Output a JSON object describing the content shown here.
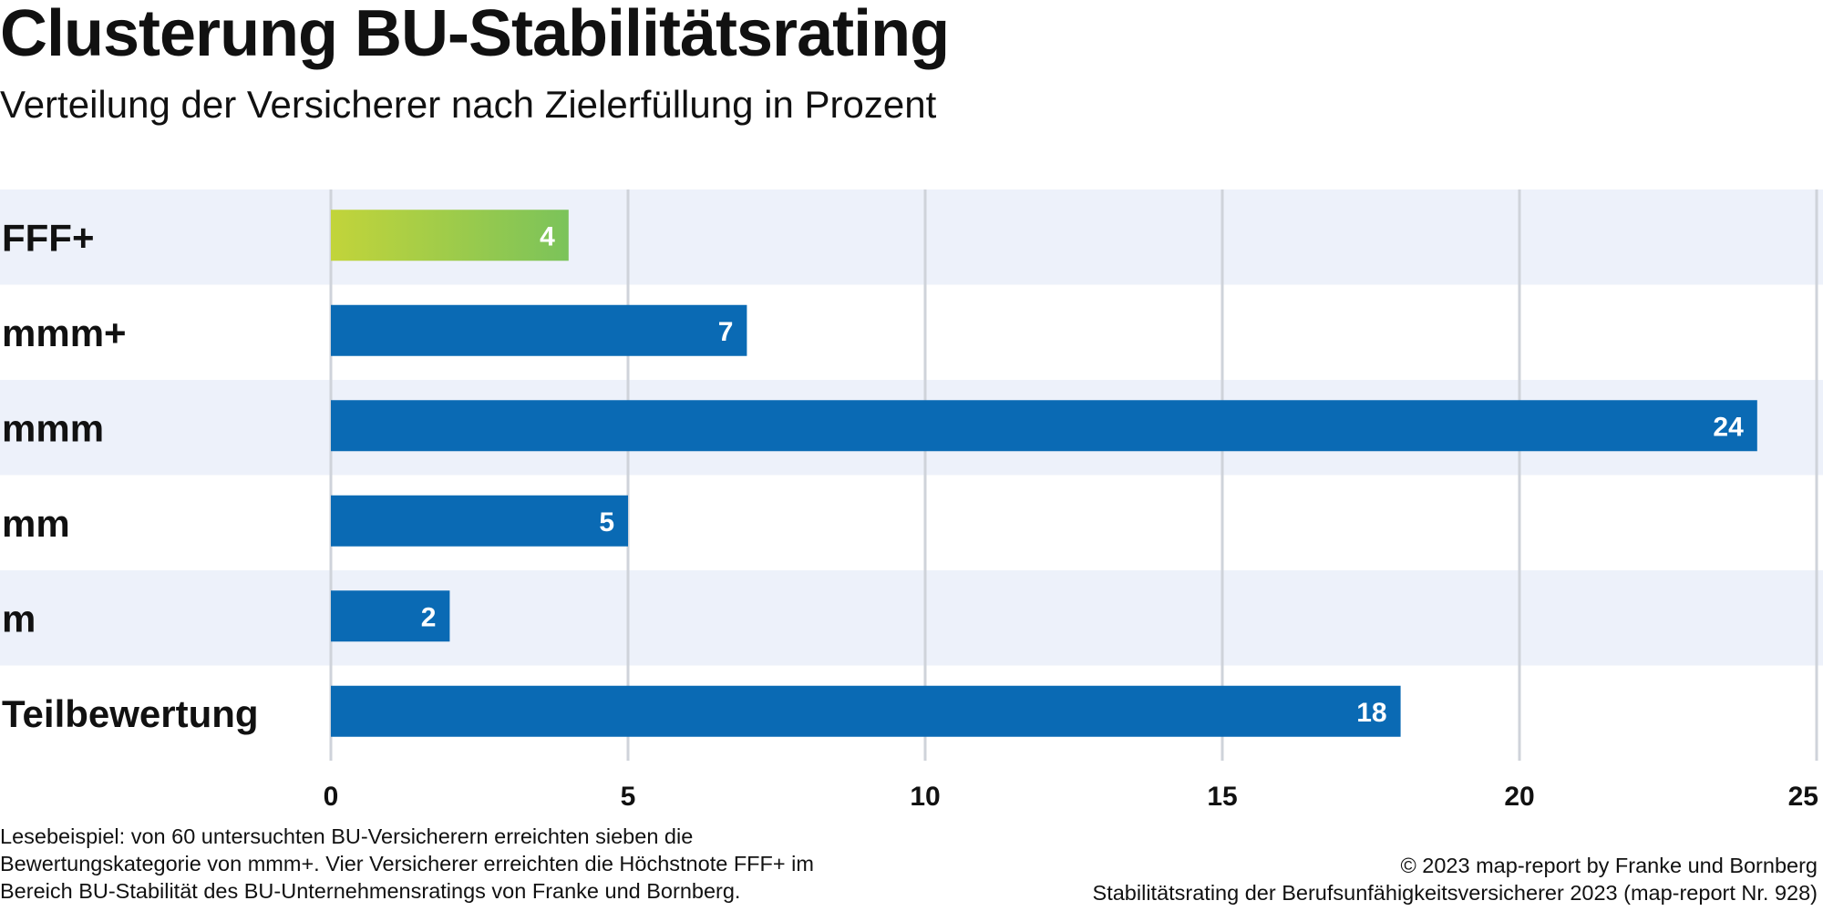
{
  "header": {
    "title": "Clusterung BU-Stabilitätsrating",
    "subtitle": "Verteilung der Versicherer nach Zielerfüllung in Prozent"
  },
  "chart_data": {
    "type": "bar",
    "orientation": "horizontal",
    "title": "Clusterung BU-Stabilitätsrating",
    "subtitle": "Verteilung der Versicherer nach Zielerfüllung in Prozent",
    "categories": [
      "FFF+",
      "mmm+",
      "mmm",
      "mm",
      "m",
      "Teilbewertung"
    ],
    "values": [
      4,
      7,
      24,
      5,
      2,
      18
    ],
    "xlim": [
      0,
      25
    ],
    "xticks": [
      0,
      5,
      10,
      15,
      20,
      25
    ],
    "xlabel": "",
    "ylabel": "",
    "grid": true,
    "colors": {
      "primary_bar": "#0a6ab4",
      "highlight_gradient_start": "#c2d43a",
      "highlight_gradient_end": "#7bc35a",
      "row_band": "#edf1fa",
      "gridline": "#cfd3da"
    },
    "highlight_category": "FFF+"
  },
  "footer": {
    "note": "Lesebeispiel: von 60 untersuchten BU-Versicherern erreichten sieben die Bewertungskategorie von mmm+. Vier Versicherer erreichten die Höchstnote FFF+ im Bereich BU-Stabilität des BU-Unternehmensratings von Franke und Bornberg.",
    "copyright": "© 2023 map-report by Franke und Bornberg",
    "source": "Stabilitätsrating der Berufsunfähigkeitsversicherer 2023 (map-report Nr. 928)"
  }
}
